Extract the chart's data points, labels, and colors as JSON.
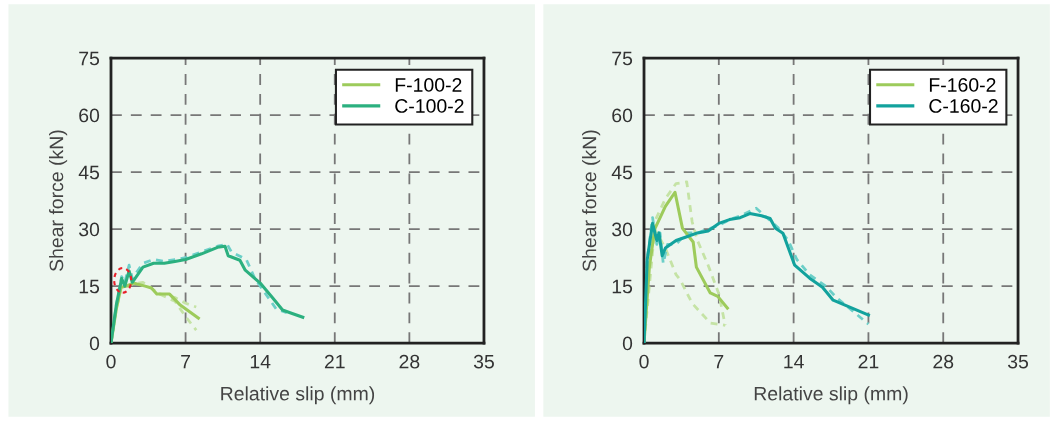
{
  "chart_data": [
    {
      "type": "line",
      "xlabel": "Relative slip (mm)",
      "ylabel": "Shear force (kN)",
      "xlim": [
        0,
        35
      ],
      "xticks": [
        0,
        7,
        14,
        21,
        28,
        35
      ],
      "ylim": [
        0,
        75
      ],
      "yticks": [
        0,
        15,
        30,
        45,
        60,
        75
      ],
      "grid": true,
      "legend": "top right",
      "marker": "none",
      "series": [
        {
          "name": "F-100-2",
          "color": "#9dcb5b",
          "line_style": "solid",
          "x": [
            0,
            0.5,
            0.94,
            1.5,
            2.1,
            3.2,
            3.8,
            4.3,
            5.5,
            6.5,
            8.2
          ],
          "values": [
            0,
            9,
            14.7,
            15,
            15.8,
            15,
            14.5,
            12.9,
            12.9,
            10,
            6.6
          ]
        },
        {
          "color": "#c5e3a5",
          "line_style": "dashed",
          "x": [
            0,
            0.5,
            1,
            2,
            3,
            4.5,
            6,
            7,
            8
          ],
          "values": [
            0,
            9,
            15,
            15.5,
            16,
            13,
            11,
            7,
            3.4
          ]
        },
        {
          "color": "#c5e3a5",
          "line_style": "dashed",
          "x": [
            4.5,
            6,
            7,
            8
          ],
          "values": [
            13,
            12,
            10.5,
            9.5
          ]
        },
        {
          "name": "C-100-2",
          "color": "#2bb07f",
          "line_style": "solid",
          "x": [
            0,
            0.5,
            1,
            1.3,
            1.7,
            2,
            3,
            4,
            5,
            6,
            7,
            8.5,
            10,
            10.7,
            11,
            12.1,
            12.6,
            14,
            15.2,
            16.1,
            17,
            18
          ],
          "values": [
            0,
            10,
            17,
            15,
            19,
            16,
            20,
            21,
            21,
            21.5,
            22,
            23.5,
            25.2,
            25.5,
            23,
            21.8,
            19.2,
            15.8,
            11.8,
            8.7,
            7.8,
            6.8
          ]
        },
        {
          "color": "#6ccfc8",
          "line_style": "dashed",
          "x": [
            0,
            0.5,
            1,
            1.3,
            1.7,
            2,
            3,
            4,
            5,
            6,
            7,
            8.5,
            10,
            10.9,
            11.3,
            12.7,
            13.5,
            14.5,
            15.5,
            16.5
          ],
          "values": [
            0,
            10,
            17.5,
            16,
            20.5,
            17,
            21,
            22,
            21.5,
            22,
            22.5,
            24,
            25.5,
            26,
            24,
            22,
            17,
            13,
            9,
            8
          ]
        }
      ]
    },
    {
      "type": "line",
      "xlabel": "Relative slip (mm)",
      "ylabel": "Shear force (kN)",
      "xlim": [
        0,
        35
      ],
      "xticks": [
        0,
        7,
        14,
        21,
        28,
        35
      ],
      "ylim": [
        0,
        75
      ],
      "yticks": [
        0,
        15,
        30,
        45,
        60,
        75
      ],
      "grid": true,
      "legend": "top right",
      "marker": "none",
      "series": [
        {
          "name": "F-160-2",
          "color": "#9dcb5b",
          "line_style": "solid",
          "x": [
            0,
            0.5,
            1,
            2,
            2.9,
            3.6,
            4.6,
            4.9,
            6.2,
            6.9,
            7.8
          ],
          "values": [
            0,
            20,
            30,
            36,
            39.7,
            30.2,
            26.6,
            20,
            13.2,
            12.3,
            9.2
          ]
        },
        {
          "color": "#c5e3a5",
          "line_style": "dashed",
          "x": [
            0,
            0.5,
            1,
            2,
            3,
            4,
            4.5,
            5,
            6,
            7,
            7.6
          ],
          "values": [
            0,
            22,
            32,
            38,
            42,
            42.4,
            32,
            27,
            20.5,
            13,
            4.7
          ]
        },
        {
          "color": "#c5e3a5",
          "line_style": "dashed",
          "x": [
            0,
            1,
            2,
            3,
            3.4,
            4.5,
            6.2,
            7.6
          ],
          "values": [
            0,
            30,
            25,
            18,
            16.6,
            10.5,
            5.3,
            4.7
          ]
        },
        {
          "name": "C-160-2",
          "color": "#12a29d",
          "line_style": "solid",
          "x": [
            0,
            0.3,
            0.8,
            1.2,
            1.4,
            1.7,
            2,
            3,
            4,
            5,
            6,
            7,
            8,
            9,
            9.9,
            11,
            11.8,
            12.3,
            13,
            14.1,
            15.5,
            16.7,
            17.7,
            21
          ],
          "values": [
            0,
            22,
            31.5,
            27,
            29,
            23,
            25,
            27,
            28,
            29,
            29.5,
            31.5,
            32.5,
            33,
            34.1,
            33.5,
            32.8,
            30.2,
            28.9,
            20.5,
            17.1,
            14.7,
            11.3,
            7.4
          ]
        },
        {
          "color": "#6ccfc8",
          "line_style": "dashed",
          "x": [
            0,
            0.3,
            0.8,
            1.2,
            1.5,
            1.8,
            2.2,
            3,
            4,
            5,
            6,
            7,
            8,
            9,
            10.5,
            11.5,
            12.5,
            13.5,
            14.3,
            15.5,
            17,
            18,
            21
          ],
          "values": [
            0,
            22,
            33,
            26,
            29,
            21,
            26,
            26,
            29,
            29,
            30,
            31,
            32.5,
            33.5,
            35.5,
            33,
            30.5,
            27,
            22,
            18,
            15,
            12,
            5
          ]
        }
      ]
    }
  ]
}
